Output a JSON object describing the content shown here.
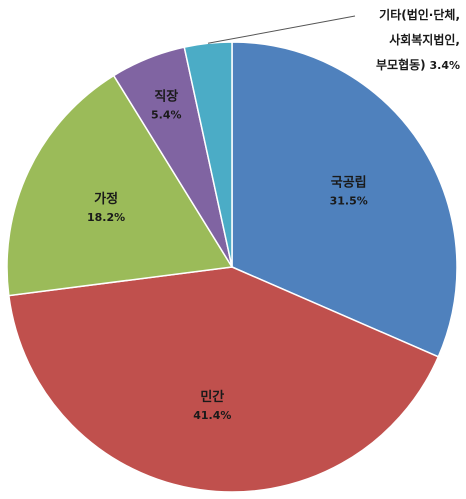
{
  "chart_data": {
    "type": "pie",
    "title": "",
    "start_angle_deg": 0,
    "direction": "clockwise",
    "slices": [
      {
        "name": "국공립",
        "value": 31.5,
        "value_label": "31.5%",
        "color": "#4f81bd",
        "label_position": "inside"
      },
      {
        "name": "민간",
        "value": 41.4,
        "value_label": "41.4%",
        "color": "#c0504d",
        "label_position": "inside"
      },
      {
        "name": "가정",
        "value": 18.2,
        "value_label": "18.2%",
        "color": "#9bbb59",
        "label_position": "inside"
      },
      {
        "name": "직장",
        "value": 5.4,
        "value_label": "5.4%",
        "color": "#8064a2",
        "label_position": "inside"
      },
      {
        "name": "기타(법인·단체, 사회복지법인, 부모협동)",
        "value": 3.4,
        "value_label": "3.4%",
        "color": "#4bacc6",
        "label_position": "outside",
        "label_lines": [
          "기타(법인·단체,",
          "사회복지법인,",
          "부모협동)"
        ]
      }
    ]
  }
}
